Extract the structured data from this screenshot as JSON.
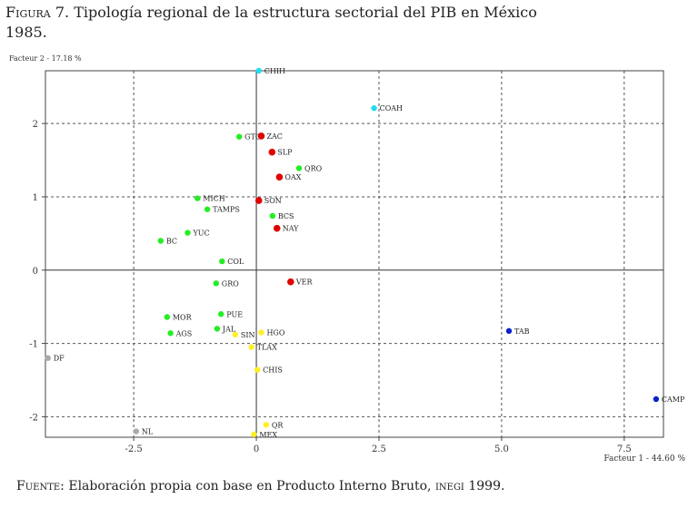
{
  "figure": {
    "label_prefix": "Figura",
    "label_number": "7.",
    "title_start": "Tipología regional de la estructura sectorial del",
    "title_abbrev": "PIB",
    "title_end": "en México",
    "year": "1985."
  },
  "source": {
    "label": "Fuente:",
    "text": "Elaboración propia con base en Producto Interno Bruto,",
    "abbrev": "inegi",
    "year": "1999."
  },
  "colors": {
    "red": "#e00000",
    "green": "#22ee22",
    "cyan": "#22ddee",
    "blue": "#0a22cc",
    "yellow": "#ffee22",
    "gray": "#aaaaaa"
  },
  "chart_data": {
    "type": "scatter",
    "xlabel": "Facteur 1  -  44.60 %",
    "ylabel": "Facteur 2  -  17.18 %",
    "xlim": [
      -4.3,
      8.3
    ],
    "ylim": [
      -2.28,
      2.72
    ],
    "x_ticks": [
      {
        "value": -2.5,
        "label": "-2.5"
      },
      {
        "value": 0,
        "label": "0"
      },
      {
        "value": 2.5,
        "label": "2.5"
      },
      {
        "value": 5,
        "label": "5.0"
      },
      {
        "value": 7.5,
        "label": "7.5"
      }
    ],
    "y_ticks": [
      {
        "value": 2,
        "label": "2"
      },
      {
        "value": 1,
        "label": "1"
      },
      {
        "value": 0,
        "label": "0"
      },
      {
        "value": -1,
        "label": "-1"
      },
      {
        "value": -2,
        "label": "-2"
      }
    ],
    "grid": true,
    "points": [
      {
        "label": "CHIH",
        "x": 0.05,
        "y": 2.72,
        "group": "cyan"
      },
      {
        "label": "COAH",
        "x": 2.4,
        "y": 2.21,
        "group": "cyan"
      },
      {
        "label": "GTO",
        "x": -0.35,
        "y": 1.82,
        "group": "green"
      },
      {
        "label": "ZAC",
        "x": 0.1,
        "y": 1.83,
        "group": "red"
      },
      {
        "label": "SLP",
        "x": 0.32,
        "y": 1.61,
        "group": "red"
      },
      {
        "label": "QRO",
        "x": 0.87,
        "y": 1.39,
        "group": "green"
      },
      {
        "label": "OAX",
        "x": 0.47,
        "y": 1.27,
        "group": "red"
      },
      {
        "label": "MICH",
        "x": -1.2,
        "y": 0.98,
        "group": "green"
      },
      {
        "label": "TAMPS",
        "x": -1.0,
        "y": 0.83,
        "group": "green"
      },
      {
        "label": "SON",
        "x": 0.05,
        "y": 0.95,
        "group": "red"
      },
      {
        "label": "BCS",
        "x": 0.33,
        "y": 0.74,
        "group": "green"
      },
      {
        "label": "NAY",
        "x": 0.42,
        "y": 0.57,
        "group": "red"
      },
      {
        "label": "YUC",
        "x": -1.4,
        "y": 0.51,
        "group": "green"
      },
      {
        "label": "BC",
        "x": -1.95,
        "y": 0.4,
        "group": "green"
      },
      {
        "label": "COL",
        "x": -0.7,
        "y": 0.12,
        "group": "green"
      },
      {
        "label": "GRO",
        "x": -0.82,
        "y": -0.18,
        "group": "green"
      },
      {
        "label": "VER",
        "x": 0.7,
        "y": -0.16,
        "group": "red"
      },
      {
        "label": "MOR",
        "x": -1.82,
        "y": -0.64,
        "group": "green"
      },
      {
        "label": "PUE",
        "x": -0.72,
        "y": -0.6,
        "group": "green"
      },
      {
        "label": "JAL",
        "x": -0.8,
        "y": -0.8,
        "group": "green"
      },
      {
        "label": "AGS",
        "x": -1.75,
        "y": -0.86,
        "group": "green"
      },
      {
        "label": "SIN",
        "x": -0.43,
        "y": -0.88,
        "group": "yellow"
      },
      {
        "label": "HGO",
        "x": 0.1,
        "y": -0.85,
        "group": "yellow"
      },
      {
        "label": "TLAX",
        "x": -0.1,
        "y": -1.05,
        "group": "yellow"
      },
      {
        "label": "TAB",
        "x": 5.15,
        "y": -0.83,
        "group": "blue"
      },
      {
        "label": "DF",
        "x": -4.25,
        "y": -1.2,
        "group": "gray"
      },
      {
        "label": "CHIS",
        "x": 0.02,
        "y": -1.36,
        "group": "yellow"
      },
      {
        "label": "CAMP",
        "x": 8.15,
        "y": -1.76,
        "group": "blue"
      },
      {
        "label": "QR",
        "x": 0.2,
        "y": -2.11,
        "group": "yellow"
      },
      {
        "label": "NL",
        "x": -2.45,
        "y": -2.2,
        "group": "gray"
      },
      {
        "label": "MEX",
        "x": -0.05,
        "y": -2.24,
        "group": "yellow"
      }
    ]
  }
}
